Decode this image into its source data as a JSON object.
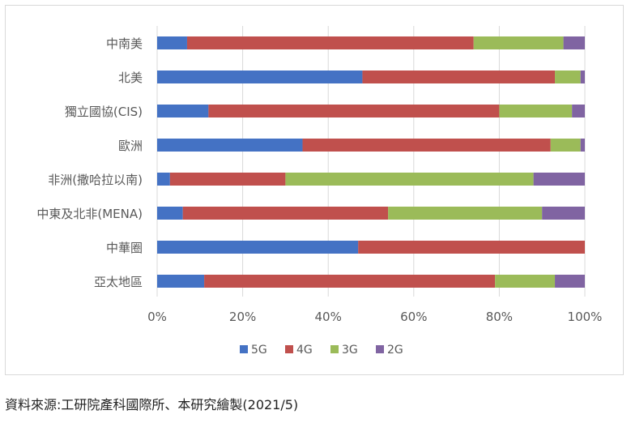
{
  "chart_data": {
    "type": "bar",
    "orientation": "horizontal",
    "stacked": true,
    "title": "",
    "xlabel": "",
    "ylabel": "",
    "categories": [
      "中南美",
      "北美",
      "獨立國協(CIS)",
      "歐洲",
      "非洲(撒哈拉以南)",
      "中東及北非(MENA)",
      "中華圈",
      "亞太地區"
    ],
    "series": [
      {
        "name": "5G",
        "color": "#4472c4",
        "values": [
          7,
          48,
          12,
          34,
          3,
          6,
          47,
          11
        ]
      },
      {
        "name": "4G",
        "color": "#c0504d",
        "values": [
          67,
          45,
          68,
          58,
          27,
          48,
          53,
          68
        ]
      },
      {
        "name": "3G",
        "color": "#9bbb59",
        "values": [
          21,
          6,
          17,
          7,
          58,
          36,
          0,
          14
        ]
      },
      {
        "name": "2G",
        "color": "#8064a2",
        "values": [
          5,
          1,
          3,
          1,
          12,
          10,
          0,
          7
        ]
      }
    ],
    "xlim": [
      0,
      100
    ],
    "xticks": [
      0,
      20,
      40,
      60,
      80,
      100
    ],
    "xtick_labels": [
      "0%",
      "20%",
      "40%",
      "60%",
      "80%",
      "100%"
    ],
    "grid": true,
    "legend": "bottom"
  },
  "source_note": "資料來源:工研院產科國際所、本研究繪製(2021/5)"
}
